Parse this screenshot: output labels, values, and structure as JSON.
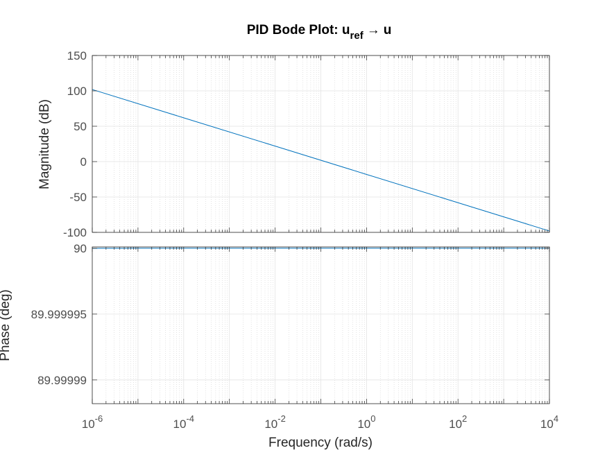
{
  "chart_data": [
    {
      "type": "line",
      "panel": "magnitude",
      "title_main": "PID Bode Plot: u",
      "title_sub": "ref",
      "title_arrow": "→",
      "title_end": "u",
      "ylabel": "Magnitude (dB)",
      "xscale": "log",
      "xlim": [
        1e-06,
        10000.0
      ],
      "ylim": [
        -100,
        150
      ],
      "yticks": [
        -100,
        -50,
        0,
        50,
        100,
        150
      ],
      "ytick_labels": [
        "-100",
        "-50",
        "0",
        "50",
        "100",
        "150"
      ],
      "grid": true,
      "minor_grid": true,
      "color": "#0072bd",
      "series": [
        {
          "x": [
            1e-06,
            0.0001,
            0.01,
            1,
            100,
            10000
          ],
          "y": [
            101.9,
            61.9,
            21.9,
            -18.1,
            -58.1,
            -98.1
          ]
        }
      ]
    },
    {
      "type": "line",
      "panel": "phase",
      "ylabel": "Phase (deg)",
      "xlabel": "Frequency  (rad/s)",
      "xscale": "log",
      "xlim": [
        1e-06,
        10000.0
      ],
      "ylim": [
        89.9999882,
        90.0000001
      ],
      "yticks": [
        89.99999,
        89.999995,
        90
      ],
      "ytick_labels": [
        "89.99999",
        "89.999995",
        "90"
      ],
      "xticks": [
        1e-06,
        0.0001,
        0.01,
        1,
        100,
        10000
      ],
      "xtick_labels": [
        {
          "base": "10",
          "exp": "-6"
        },
        {
          "base": "10",
          "exp": "-4"
        },
        {
          "base": "10",
          "exp": "-2"
        },
        {
          "base": "10",
          "exp": "0"
        },
        {
          "base": "10",
          "exp": "2"
        },
        {
          "base": "10",
          "exp": "4"
        }
      ],
      "grid": true,
      "minor_grid": true,
      "color": "#0072bd",
      "phase_model": {
        "plateau": 90,
        "deficit_at_1e-6": 1.18e-08,
        "decay": "proportional to 1/omega"
      }
    }
  ]
}
